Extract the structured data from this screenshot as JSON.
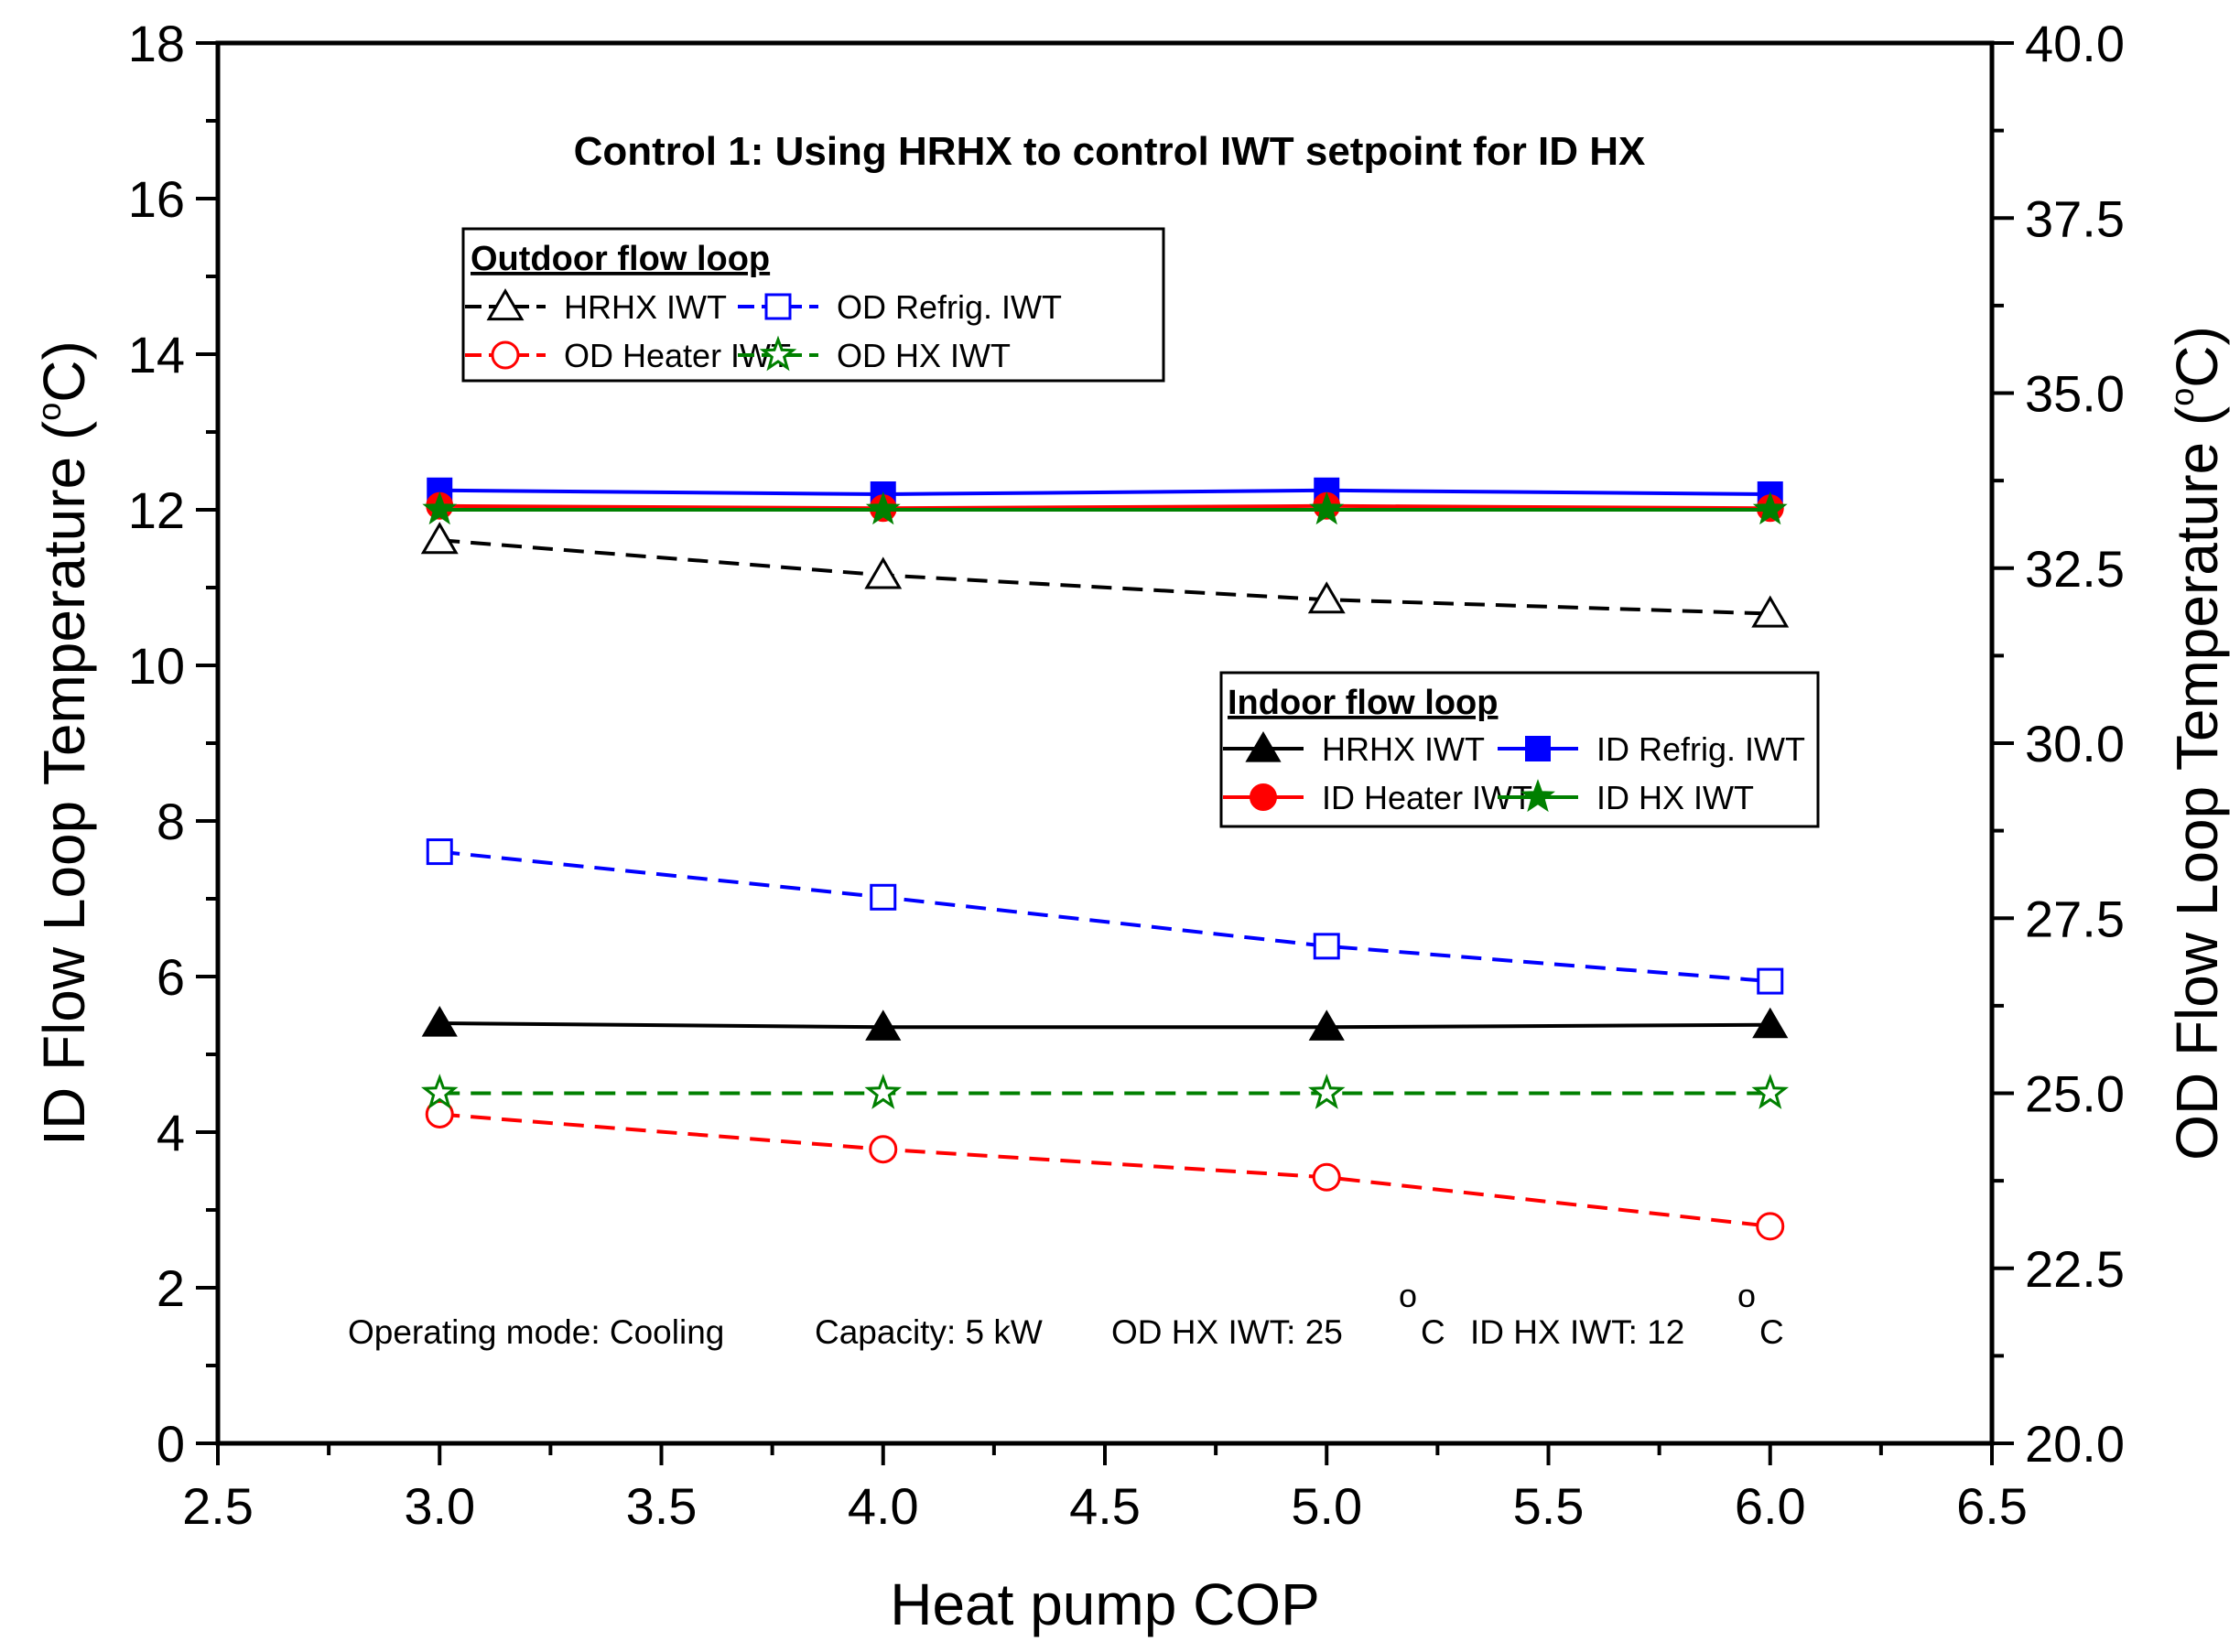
{
  "chart_data": {
    "type": "line",
    "title": "Control 1: Using HRHX to control IWT setpoint for ID HX",
    "xlabel": "Heat pump COP",
    "ylabel": {
      "main": "ID Flow Loop Temperature (",
      "sup": "o",
      "unit": "C)"
    },
    "y2label": {
      "main": "OD Flow Loop Temperature (",
      "sup": "o",
      "unit": "C)"
    },
    "xlim": [
      2.5,
      6.5
    ],
    "ylim": [
      0,
      18
    ],
    "y2lim": [
      20,
      40
    ],
    "x_ticks": [
      "2.5",
      "3.0",
      "3.5",
      "4.0",
      "4.5",
      "5.0",
      "5.5",
      "6.0",
      "6.5"
    ],
    "y_ticks": [
      "0",
      "2",
      "4",
      "6",
      "8",
      "10",
      "12",
      "14",
      "16",
      "18"
    ],
    "y2_ticks": [
      "20.0",
      "22.5",
      "25.0",
      "27.5",
      "30.0",
      "32.5",
      "35.0",
      "37.5",
      "40.0"
    ],
    "x": [
      3.0,
      4.0,
      5.0,
      6.0
    ],
    "series": [
      {
        "name": "HRHX IWT",
        "loop": "indoor",
        "axis": "left",
        "color": "#000000",
        "marker": "triangle",
        "filled": true,
        "dashed": false,
        "values": [
          5.4,
          5.35,
          5.35,
          5.38
        ]
      },
      {
        "name": "ID Refrig. IWT",
        "loop": "indoor",
        "axis": "left",
        "color": "#0000ff",
        "marker": "square",
        "filled": true,
        "dashed": false,
        "values": [
          12.25,
          12.2,
          12.25,
          12.2
        ]
      },
      {
        "name": "ID Heater IWT",
        "loop": "indoor",
        "axis": "left",
        "color": "#ff0000",
        "marker": "circle",
        "filled": true,
        "dashed": false,
        "values": [
          12.05,
          12.02,
          12.05,
          12.02
        ]
      },
      {
        "name": "ID HX IWT",
        "loop": "indoor",
        "axis": "left",
        "color": "#008000",
        "marker": "star",
        "filled": true,
        "dashed": false,
        "values": [
          12.0,
          12.0,
          12.0,
          12.0
        ]
      },
      {
        "name": "HRHX IWT",
        "loop": "outdoor",
        "axis": "right",
        "color": "#000000",
        "marker": "triangle",
        "filled": false,
        "dashed": true,
        "values": [
          32.9,
          32.4,
          32.05,
          31.85
        ]
      },
      {
        "name": "OD Refrig. IWT",
        "loop": "outdoor",
        "axis": "right",
        "color": "#0000ff",
        "marker": "square",
        "filled": false,
        "dashed": true,
        "values": [
          28.45,
          27.8,
          27.1,
          26.6
        ]
      },
      {
        "name": "OD Heater IWT",
        "loop": "outdoor",
        "axis": "right",
        "color": "#ff0000",
        "marker": "circle",
        "filled": false,
        "dashed": true,
        "values": [
          24.7,
          24.2,
          23.8,
          23.1
        ]
      },
      {
        "name": "OD HX IWT",
        "loop": "outdoor",
        "axis": "right",
        "color": "#008000",
        "marker": "star",
        "filled": false,
        "dashed": true,
        "values": [
          25.0,
          25.0,
          25.0,
          25.0
        ]
      }
    ],
    "legends": [
      {
        "heading": "Outdoor flow loop",
        "loop": "outdoor",
        "entries": [
          "HRHX IWT",
          "OD Refrig. IWT",
          "OD Heater IWT",
          "OD HX IWT"
        ]
      },
      {
        "heading": "Indoor flow loop",
        "loop": "indoor",
        "entries": [
          "HRHX IWT",
          "ID Refrig. IWT",
          "ID Heater IWT",
          "ID HX IWT"
        ]
      }
    ],
    "annotation": {
      "mode": "Operating mode: Cooling",
      "capacity": "Capacity: 5 kW",
      "od_hx": "OD HX IWT: 25",
      "od_hx_sup": "o",
      "od_hx_unit": "C",
      "id_hx": "ID HX IWT: 12",
      "id_hx_sup": "o",
      "id_hx_unit": "C"
    }
  }
}
